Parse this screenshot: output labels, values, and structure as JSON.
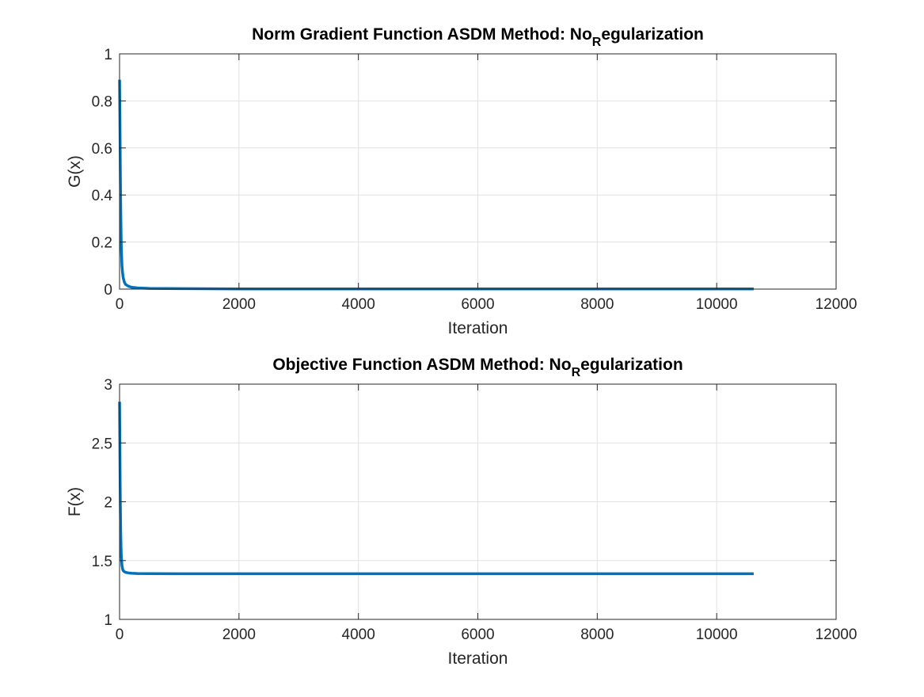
{
  "chart_data": [
    {
      "type": "line",
      "title": "Norm Gradient Function ASDM Method: No",
      "title_subscript": "R",
      "title_after": "egularization",
      "xlabel": "Iteration",
      "ylabel": "G(x)",
      "xlim": [
        0,
        12000
      ],
      "ylim": [
        0,
        1
      ],
      "xticks": [
        "0",
        "2000",
        "4000",
        "6000",
        "8000",
        "10000",
        "12000"
      ],
      "yticks": [
        "0",
        "0.2",
        "0.4",
        "0.6",
        "0.8",
        "1"
      ],
      "grid": true,
      "series": [
        {
          "color": "#0072BD",
          "x": [
            0,
            5,
            10,
            15,
            20,
            25,
            30,
            40,
            50,
            60,
            80,
            100,
            150,
            200,
            300,
            500,
            1000,
            2000,
            4000,
            6000,
            8000,
            10000,
            10620
          ],
          "y": [
            0.89,
            0.75,
            0.6,
            0.45,
            0.33,
            0.24,
            0.17,
            0.1,
            0.07,
            0.05,
            0.03,
            0.02,
            0.012,
            0.008,
            0.005,
            0.003,
            0.002,
            0.001,
            0.001,
            0.001,
            0.001,
            0.001,
            0.001
          ]
        }
      ]
    },
    {
      "type": "line",
      "title": "Objective Function ASDM Method: No",
      "title_subscript": "R",
      "title_after": "egularization",
      "xlabel": "Iteration",
      "ylabel": "F(x)",
      "xlim": [
        0,
        12000
      ],
      "ylim": [
        1,
        3
      ],
      "xticks": [
        "0",
        "2000",
        "4000",
        "6000",
        "8000",
        "10000",
        "12000"
      ],
      "yticks": [
        "1",
        "1.5",
        "2",
        "2.5",
        "3"
      ],
      "grid": true,
      "series": [
        {
          "color": "#0072BD",
          "x": [
            0,
            5,
            10,
            15,
            20,
            25,
            30,
            40,
            50,
            60,
            80,
            100,
            150,
            200,
            300,
            500,
            1000,
            2000,
            4000,
            6000,
            8000,
            10000,
            10620
          ],
          "y": [
            2.85,
            2.5,
            2.15,
            1.9,
            1.72,
            1.6,
            1.53,
            1.46,
            1.43,
            1.415,
            1.405,
            1.4,
            1.395,
            1.392,
            1.39,
            1.389,
            1.388,
            1.388,
            1.388,
            1.388,
            1.388,
            1.388,
            1.388
          ]
        }
      ]
    }
  ]
}
